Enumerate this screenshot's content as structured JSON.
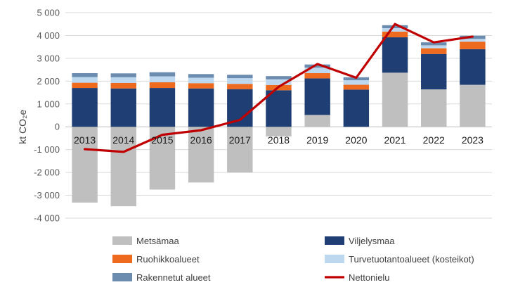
{
  "chart_data": {
    "type": "bar",
    "stacked": true,
    "categories": [
      "2013",
      "2014",
      "2015",
      "2016",
      "2017",
      "2018",
      "2019",
      "2020",
      "2021",
      "2022",
      "2023"
    ],
    "ylabel": "kt CO₂e",
    "ylim": [
      -4000,
      5000
    ],
    "yticks": [
      5000,
      4000,
      3000,
      2000,
      1000,
      0,
      -1000,
      -2000,
      -3000,
      -4000
    ],
    "ytick_labels": [
      "5 000",
      "4 000",
      "3 000",
      "2 000",
      "1 000",
      "0",
      "-1 000",
      "-2 000",
      "-3 000",
      "-4 000"
    ],
    "legend_position": "bottom",
    "series": [
      {
        "name": "Metsämaa",
        "type": "bar",
        "color": "#bfbfbf",
        "values": [
          -3320,
          -3480,
          -2750,
          -2440,
          -2000,
          -420,
          520,
          0,
          2370,
          1640,
          1840
        ]
      },
      {
        "name": "Viljelysmaa",
        "type": "bar",
        "color": "#1f3f74",
        "values": [
          1700,
          1680,
          1700,
          1680,
          1650,
          1600,
          1600,
          1630,
          1550,
          1550,
          1560
        ]
      },
      {
        "name": "Ruohikkoalueet",
        "type": "bar",
        "color": "#ed6a1e",
        "values": [
          230,
          240,
          250,
          230,
          230,
          230,
          230,
          210,
          250,
          250,
          330
        ]
      },
      {
        "name": "Turvetuotantoalueet (kosteikot)",
        "type": "bar",
        "color": "#bdd7ee",
        "values": [
          250,
          250,
          260,
          240,
          250,
          250,
          240,
          200,
          150,
          130,
          120
        ]
      },
      {
        "name": "Rakennetut alueet",
        "type": "bar",
        "color": "#6b8caf",
        "values": [
          170,
          170,
          180,
          160,
          150,
          140,
          140,
          130,
          130,
          130,
          140
        ]
      },
      {
        "name": "Nettonielu",
        "type": "line",
        "color": "#c00000",
        "values": [
          -980,
          -1100,
          -350,
          -150,
          300,
          1750,
          2750,
          2150,
          4500,
          3700,
          3950
        ]
      }
    ]
  }
}
